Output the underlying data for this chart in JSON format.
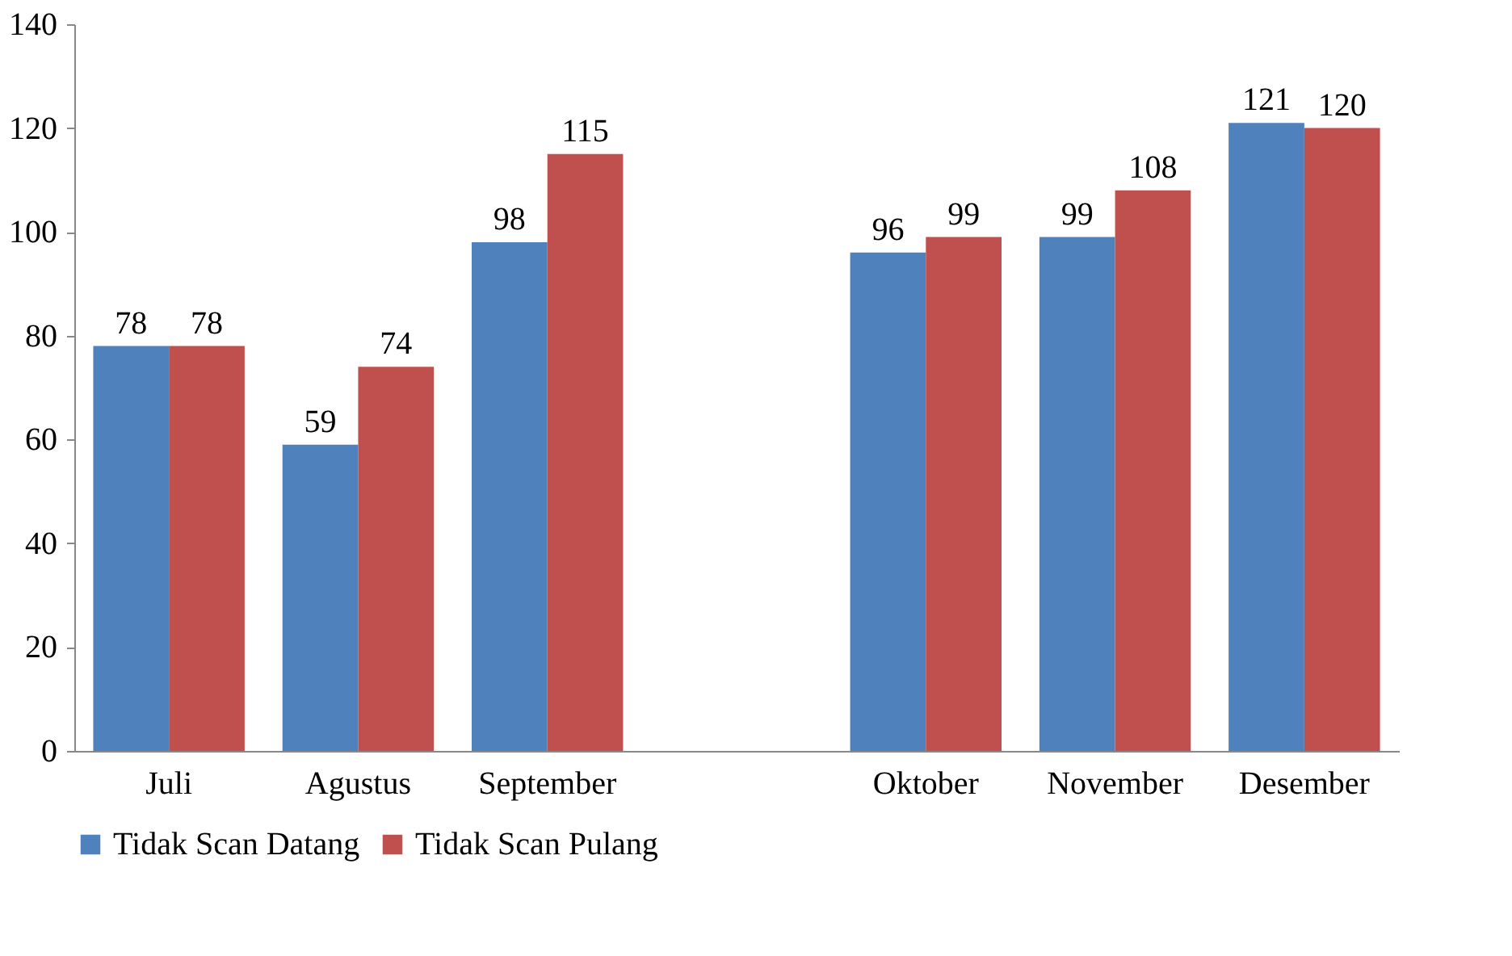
{
  "chart_data": {
    "type": "bar",
    "categories": [
      "Juli",
      "Agustus",
      "September",
      null,
      "Oktober",
      "November",
      "Desember"
    ],
    "series": [
      {
        "name": "Tidak Scan Datang",
        "color": "#4f81bd",
        "values": [
          78,
          59,
          98,
          null,
          96,
          99,
          121
        ]
      },
      {
        "name": "Tidak Scan Pulang",
        "color": "#c0504d",
        "values": [
          78,
          74,
          115,
          null,
          99,
          108,
          120
        ]
      }
    ],
    "ylim": [
      0,
      140
    ],
    "yticks": [
      0,
      20,
      40,
      60,
      80,
      100,
      120,
      140
    ],
    "data_labels": true,
    "legend": "bottom"
  }
}
